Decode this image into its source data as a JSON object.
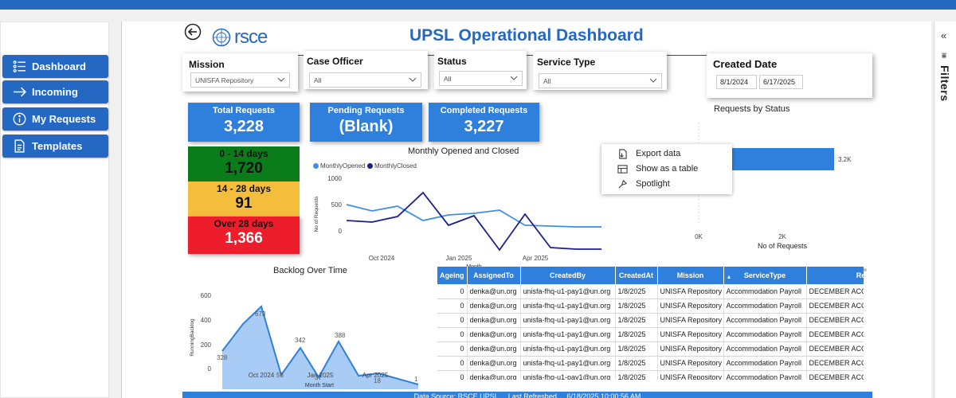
{
  "colors": {
    "accent": "#2468c4",
    "kpi": "#2f80dc",
    "age_green": "#0a7d1a",
    "age_yellow": "#f5bd3c",
    "age_red": "#ee1d2c",
    "opened": "#3d8fe8",
    "closed": "#1a1f8c"
  },
  "sidebar": {
    "items": [
      {
        "label": "Dashboard",
        "icon": "list-icon"
      },
      {
        "label": "Incoming",
        "icon": "arrow-right-icon"
      },
      {
        "label": "My Requests",
        "icon": "info-icon"
      },
      {
        "label": "Templates",
        "icon": "document-icon"
      }
    ]
  },
  "header": {
    "logo_text": "rsce",
    "title": "UPSL Operational Dashboard"
  },
  "right_pane": {
    "collapse_glyph": "«",
    "filter_glyph": "⩸",
    "filters_label": "Filters"
  },
  "slicers": {
    "mission": {
      "title": "Mission",
      "value": "UNISFA Repository"
    },
    "case_officer": {
      "title": "Case Officer",
      "value": "All"
    },
    "status": {
      "title": "Status",
      "value": "All"
    },
    "service_type": {
      "title": "Service Type",
      "value": "All"
    },
    "created_date": {
      "title": "Created Date",
      "start": "8/1/2024",
      "end": "6/17/2025"
    }
  },
  "kpis": {
    "total": {
      "label": "Total Requests",
      "value": "3,228"
    },
    "pending": {
      "label": "Pending Requests",
      "value": "(Blank)"
    },
    "completed": {
      "label": "Completed Requests",
      "value": "3,227"
    }
  },
  "ageing": [
    {
      "label": "0 - 14 days",
      "value": "1,720"
    },
    {
      "label": "14 - 28 days",
      "value": "91"
    },
    {
      "label": "Over 28 days",
      "value": "1,366"
    }
  ],
  "monthly_chart": {
    "title": "Monthly Opened and Closed",
    "legend": [
      "MonthlyOpened",
      "MonthlyClosed"
    ],
    "ylabel": "No of Requests",
    "xlabel": "Month",
    "yticks": [
      "1000",
      "500",
      "0"
    ],
    "xticks": [
      "Oct 2024",
      "Jan 2025",
      "Apr 2025"
    ]
  },
  "status_chart": {
    "title": "Requests by Status",
    "bar_label": "3.2K",
    "xticks": [
      "0K",
      "2K"
    ],
    "xlabel": "No of Requests"
  },
  "context_menu": {
    "items": [
      {
        "label": "Export data",
        "icon": "export-icon"
      },
      {
        "label": "Show as a table",
        "icon": "table-icon"
      },
      {
        "label": "Spotlight",
        "icon": "spotlight-icon"
      }
    ]
  },
  "backlog_chart": {
    "title": "Backlog Over Time",
    "ylabel": "RunningBacklog",
    "xlabel": "Month Start",
    "yticks": [
      "600",
      "400",
      "200",
      "0"
    ],
    "xticks": [
      "Oct 2024",
      "Jan 2025",
      "Apr 2025"
    ],
    "data_labels": [
      "328",
      "673",
      "56",
      "342",
      "37",
      "388",
      "18",
      "1"
    ]
  },
  "table": {
    "columns": [
      "Ageing",
      "AssignedTo",
      "CreatedBy",
      "CreatedAt",
      "Mission",
      "ServiceType",
      "Re"
    ],
    "rows": [
      [
        "0",
        "denka@un.org",
        "unisfa-fhq-u1-pay1@un.org",
        "1/8/2025",
        "UNISFA Repository",
        "Accommodation Payroll",
        "DECEMBER ACCO"
      ],
      [
        "0",
        "denka@un.org",
        "unisfa-fhq-u1-pay1@un.org",
        "1/8/2025",
        "UNISFA Repository",
        "Accommodation Payroll",
        "DECEMBER ACCO"
      ],
      [
        "0",
        "denka@un.org",
        "unisfa-fhq-u1-pay1@un.org",
        "1/8/2025",
        "UNISFA Repository",
        "Accommodation Payroll",
        "DECEMBER ACCO"
      ],
      [
        "0",
        "denka@un.org",
        "unisfa-fhq-u1-pay1@un.org",
        "1/8/2025",
        "UNISFA Repository",
        "Accommodation Payroll",
        "DECEMBER ACCO"
      ],
      [
        "0",
        "denka@un.org",
        "unisfa-fhq-u1-pay1@un.org",
        "1/8/2025",
        "UNISFA Repository",
        "Accommodation Payroll",
        "DECEMBER ACCO"
      ],
      [
        "0",
        "denka@un.org",
        "unisfa-fhq-u1-pay1@un.org",
        "1/8/2025",
        "UNISFA Repository",
        "Accommodation Payroll",
        "DECEMBER ACCO"
      ],
      [
        "0",
        "denka@un.org",
        "unisfa-fhq-u1-pay1@un.org",
        "1/8/2025",
        "UNISFA Repository",
        "Accommodation Payroll",
        "DECEMBER ACCO"
      ]
    ]
  },
  "footer": {
    "text": "Data Source: RSCE UPSL ... Last Refreshed ... 6/18/2025 10:00:56 AM"
  }
}
